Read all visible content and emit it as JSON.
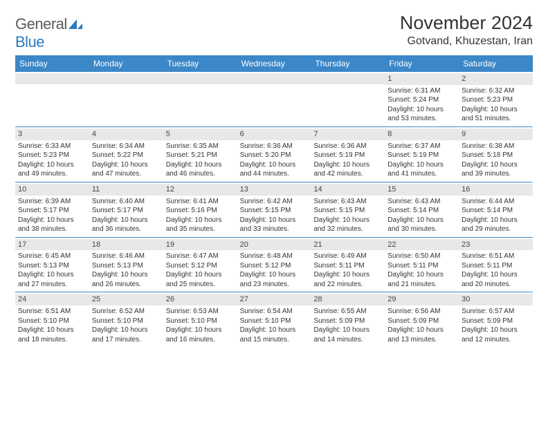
{
  "logo": {
    "textA": "General",
    "textB": "Blue"
  },
  "title": "November 2024",
  "location": "Gotvand, Khuzestan, Iran",
  "colors": {
    "header_bg": "#3b87c8",
    "header_text": "#ffffff",
    "daynum_bg": "#e8e8e8",
    "border": "#3b87c8",
    "logo_blue": "#2b7bbf"
  },
  "day_headers": [
    "Sunday",
    "Monday",
    "Tuesday",
    "Wednesday",
    "Thursday",
    "Friday",
    "Saturday"
  ],
  "weeks": [
    [
      null,
      null,
      null,
      null,
      null,
      {
        "n": "1",
        "sr": "6:31 AM",
        "ss": "5:24 PM",
        "dl": "10 hours and 53 minutes."
      },
      {
        "n": "2",
        "sr": "6:32 AM",
        "ss": "5:23 PM",
        "dl": "10 hours and 51 minutes."
      }
    ],
    [
      {
        "n": "3",
        "sr": "6:33 AM",
        "ss": "5:23 PM",
        "dl": "10 hours and 49 minutes."
      },
      {
        "n": "4",
        "sr": "6:34 AM",
        "ss": "5:22 PM",
        "dl": "10 hours and 47 minutes."
      },
      {
        "n": "5",
        "sr": "6:35 AM",
        "ss": "5:21 PM",
        "dl": "10 hours and 46 minutes."
      },
      {
        "n": "6",
        "sr": "6:36 AM",
        "ss": "5:20 PM",
        "dl": "10 hours and 44 minutes."
      },
      {
        "n": "7",
        "sr": "6:36 AM",
        "ss": "5:19 PM",
        "dl": "10 hours and 42 minutes."
      },
      {
        "n": "8",
        "sr": "6:37 AM",
        "ss": "5:19 PM",
        "dl": "10 hours and 41 minutes."
      },
      {
        "n": "9",
        "sr": "6:38 AM",
        "ss": "5:18 PM",
        "dl": "10 hours and 39 minutes."
      }
    ],
    [
      {
        "n": "10",
        "sr": "6:39 AM",
        "ss": "5:17 PM",
        "dl": "10 hours and 38 minutes."
      },
      {
        "n": "11",
        "sr": "6:40 AM",
        "ss": "5:17 PM",
        "dl": "10 hours and 36 minutes."
      },
      {
        "n": "12",
        "sr": "6:41 AM",
        "ss": "5:16 PM",
        "dl": "10 hours and 35 minutes."
      },
      {
        "n": "13",
        "sr": "6:42 AM",
        "ss": "5:15 PM",
        "dl": "10 hours and 33 minutes."
      },
      {
        "n": "14",
        "sr": "6:43 AM",
        "ss": "5:15 PM",
        "dl": "10 hours and 32 minutes."
      },
      {
        "n": "15",
        "sr": "6:43 AM",
        "ss": "5:14 PM",
        "dl": "10 hours and 30 minutes."
      },
      {
        "n": "16",
        "sr": "6:44 AM",
        "ss": "5:14 PM",
        "dl": "10 hours and 29 minutes."
      }
    ],
    [
      {
        "n": "17",
        "sr": "6:45 AM",
        "ss": "5:13 PM",
        "dl": "10 hours and 27 minutes."
      },
      {
        "n": "18",
        "sr": "6:46 AM",
        "ss": "5:13 PM",
        "dl": "10 hours and 26 minutes."
      },
      {
        "n": "19",
        "sr": "6:47 AM",
        "ss": "5:12 PM",
        "dl": "10 hours and 25 minutes."
      },
      {
        "n": "20",
        "sr": "6:48 AM",
        "ss": "5:12 PM",
        "dl": "10 hours and 23 minutes."
      },
      {
        "n": "21",
        "sr": "6:49 AM",
        "ss": "5:11 PM",
        "dl": "10 hours and 22 minutes."
      },
      {
        "n": "22",
        "sr": "6:50 AM",
        "ss": "5:11 PM",
        "dl": "10 hours and 21 minutes."
      },
      {
        "n": "23",
        "sr": "6:51 AM",
        "ss": "5:11 PM",
        "dl": "10 hours and 20 minutes."
      }
    ],
    [
      {
        "n": "24",
        "sr": "6:51 AM",
        "ss": "5:10 PM",
        "dl": "10 hours and 18 minutes."
      },
      {
        "n": "25",
        "sr": "6:52 AM",
        "ss": "5:10 PM",
        "dl": "10 hours and 17 minutes."
      },
      {
        "n": "26",
        "sr": "6:53 AM",
        "ss": "5:10 PM",
        "dl": "10 hours and 16 minutes."
      },
      {
        "n": "27",
        "sr": "6:54 AM",
        "ss": "5:10 PM",
        "dl": "10 hours and 15 minutes."
      },
      {
        "n": "28",
        "sr": "6:55 AM",
        "ss": "5:09 PM",
        "dl": "10 hours and 14 minutes."
      },
      {
        "n": "29",
        "sr": "6:56 AM",
        "ss": "5:09 PM",
        "dl": "10 hours and 13 minutes."
      },
      {
        "n": "30",
        "sr": "6:57 AM",
        "ss": "5:09 PM",
        "dl": "10 hours and 12 minutes."
      }
    ]
  ],
  "labels": {
    "sunrise": "Sunrise: ",
    "sunset": "Sunset: ",
    "daylight": "Daylight: "
  }
}
